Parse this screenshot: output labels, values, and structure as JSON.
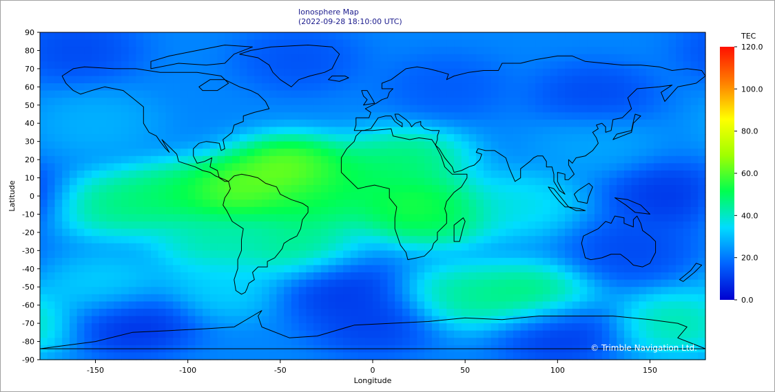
{
  "chart_data": {
    "type": "heatmap",
    "title": "Ionosphere Map",
    "subtitle": "(2022-09-28 18:10:00 UTC)",
    "xlabel": "Longitude",
    "ylabel": "Latitude",
    "xlim": [
      -180,
      180
    ],
    "ylim": [
      -90,
      90
    ],
    "x_ticks": [
      "-150",
      "-100",
      "-50",
      "0",
      "50",
      "100",
      "150"
    ],
    "x_tick_values": [
      -150,
      -100,
      -50,
      0,
      50,
      100,
      150
    ],
    "y_ticks": [
      "90",
      "80",
      "70",
      "60",
      "50",
      "40",
      "30",
      "20",
      "10",
      "0",
      "-10",
      "-20",
      "-30",
      "-40",
      "-50",
      "-60",
      "-70",
      "-80",
      "-90"
    ],
    "y_tick_values": [
      90,
      80,
      70,
      60,
      50,
      40,
      30,
      20,
      10,
      0,
      -10,
      -20,
      -30,
      -40,
      -50,
      -60,
      -70,
      -80,
      -90
    ],
    "colorbar": {
      "label": "TEC",
      "range": [
        0,
        120
      ],
      "ticks": [
        "120.0",
        "100.0",
        "80.0",
        "60.0",
        "40.0",
        "20.0",
        "0.0"
      ],
      "tick_values": [
        120,
        100,
        80,
        60,
        40,
        20,
        0
      ],
      "colors": [
        "#0000d0",
        "#0064ff",
        "#00dcff",
        "#00ff50",
        "#a0ff00",
        "#ffff00",
        "#ff8000",
        "#ff1000"
      ]
    },
    "background_tec": 22,
    "features": [
      {
        "lon": -45,
        "lat": 15,
        "tec": 75
      },
      {
        "lon": -75,
        "lat": 3,
        "tec": 72
      },
      {
        "lon": -110,
        "lat": 0,
        "tec": 56
      },
      {
        "lon": -140,
        "lat": -5,
        "tec": 52
      },
      {
        "lon": -35,
        "lat": -5,
        "tec": 58
      },
      {
        "lon": -10,
        "lat": 10,
        "tec": 56
      },
      {
        "lon": 20,
        "lat": 20,
        "tec": 54
      },
      {
        "lon": 20,
        "lat": -5,
        "tec": 62
      },
      {
        "lon": 35,
        "lat": -10,
        "tec": 56
      },
      {
        "lon": -40,
        "lat": -30,
        "tec": 52
      },
      {
        "lon": -85,
        "lat": -25,
        "tec": 48
      },
      {
        "lon": 80,
        "lat": -5,
        "tec": 40
      },
      {
        "lon": 85,
        "lat": -55,
        "tec": 55
      },
      {
        "lon": 50,
        "lat": -55,
        "tec": 50
      },
      {
        "lon": -145,
        "lat": -50,
        "tec": 36
      },
      {
        "lon": -80,
        "lat": -50,
        "tec": 36
      },
      {
        "lon": 165,
        "lat": -70,
        "tec": 48
      },
      {
        "lon": -150,
        "lat": 40,
        "tec": 30
      },
      {
        "lon": 120,
        "lat": 30,
        "tec": 28
      },
      {
        "lon": 160,
        "lat": 0,
        "tec": 6
      },
      {
        "lon": 120,
        "lat": 55,
        "tec": 10
      },
      {
        "lon": -40,
        "lat": 75,
        "tec": 12
      },
      {
        "lon": -160,
        "lat": 80,
        "tec": 10
      },
      {
        "lon": -130,
        "lat": -70,
        "tec": 4
      },
      {
        "lon": 100,
        "lat": -75,
        "tec": 6
      },
      {
        "lon": -20,
        "lat": -50,
        "tec": 6
      },
      {
        "lon": 0,
        "lat": -70,
        "tec": 8
      },
      {
        "lon": 140,
        "lat": -30,
        "tec": 10
      },
      {
        "lon": 40,
        "lat": 60,
        "tec": 14
      }
    ],
    "grid": false,
    "overlay": "world coastlines and country borders"
  },
  "copyright": "© Trimble Navigation Ltd."
}
